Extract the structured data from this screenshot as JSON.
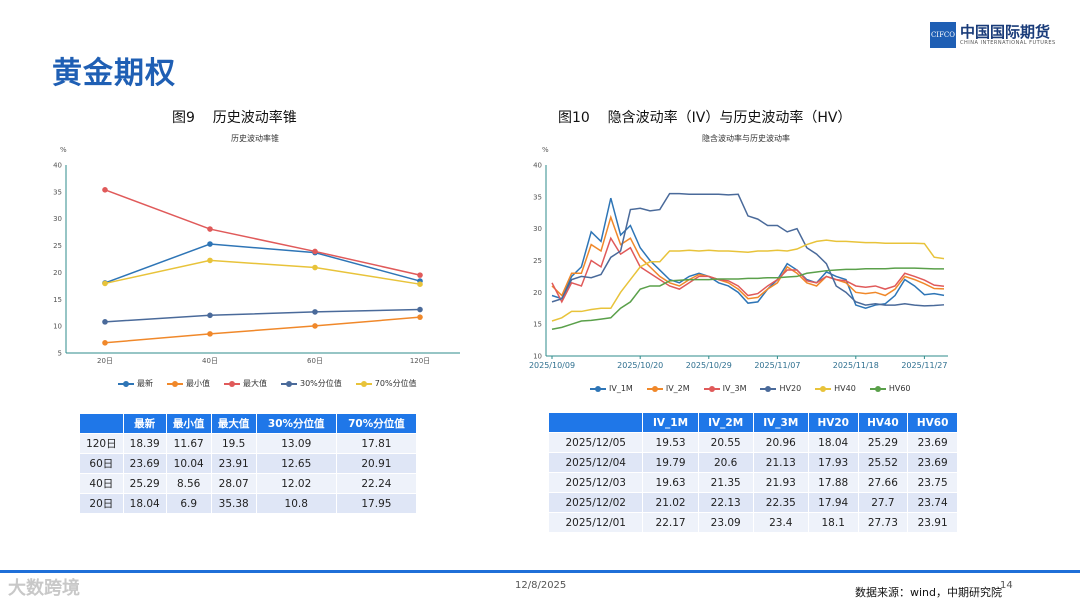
{
  "page": {
    "title": "黄金期权",
    "date": "12/8/2025",
    "source": "数据来源：wind，中期研究院",
    "page_number": "14",
    "watermark": "大数跨境"
  },
  "logo": {
    "box": "CIFCO",
    "cn": "中国国际期货",
    "en": "CHINA INTERNATIONAL FUTURES"
  },
  "fig9": {
    "caption": "图9    历史波动率锥",
    "chart_title": "历史波动率锥",
    "unit": "%"
  },
  "fig10": {
    "caption": "图10    隐含波动率（IV）与历史波动率（HV）",
    "chart_title": "隐含波动率与历史波动率",
    "unit": "%"
  },
  "chart_data": [
    {
      "type": "line",
      "title": "历史波动率锥",
      "ylabel": "%",
      "categories": [
        "20日",
        "40日",
        "60日",
        "120日"
      ],
      "ylim": [
        5,
        40
      ],
      "yticks": [
        5,
        10,
        15,
        20,
        25,
        30,
        35,
        40
      ],
      "grid": false,
      "legend": "bottom",
      "series": [
        {
          "name": "最新",
          "color": "#2e75b6",
          "values": [
            18.04,
            25.29,
            23.69,
            18.39
          ]
        },
        {
          "name": "最小值",
          "color": "#f0882a",
          "values": [
            6.9,
            8.56,
            10.04,
            11.67
          ]
        },
        {
          "name": "最大值",
          "color": "#e05a5a",
          "values": [
            35.38,
            28.07,
            23.91,
            19.5
          ]
        },
        {
          "name": "30%分位值",
          "color": "#4a6a9a",
          "values": [
            10.8,
            12.02,
            12.65,
            13.09
          ]
        },
        {
          "name": "70%分位值",
          "color": "#e8c33a",
          "values": [
            17.95,
            22.24,
            20.91,
            17.81
          ]
        }
      ]
    },
    {
      "type": "line",
      "title": "隐含波动率与历史波动率",
      "ylabel": "%",
      "xtick_labels": [
        "2025/10/09",
        "2025/10/20",
        "2025/10/29",
        "2025/11/07",
        "2025/11/18",
        "2025/11/27"
      ],
      "xtick_index": [
        0,
        9,
        16,
        23,
        31,
        38
      ],
      "ylim": [
        10,
        40
      ],
      "yticks": [
        10,
        15,
        20,
        25,
        30,
        35,
        40
      ],
      "grid": false,
      "legend": "bottom",
      "series": [
        {
          "name": "IV_1M",
          "color": "#2e75b6",
          "values": [
            19.5,
            19.0,
            22.5,
            24.0,
            29.5,
            28.0,
            34.8,
            29.0,
            30.5,
            27.0,
            25.0,
            23.5,
            22.0,
            21.5,
            22.5,
            23.0,
            22.5,
            21.5,
            21.0,
            20.0,
            18.3,
            18.5,
            20.5,
            22.0,
            24.5,
            23.5,
            22.0,
            21.5,
            23.2,
            22.5,
            22.0,
            18.0,
            17.5,
            18.0,
            18.2,
            19.5,
            22.0,
            21.0,
            19.63,
            19.79,
            19.53
          ]
        },
        {
          "name": "IV_2M",
          "color": "#f0882a",
          "values": [
            21.0,
            19.5,
            23.0,
            23.0,
            27.5,
            26.5,
            31.8,
            27.5,
            28.5,
            25.5,
            24.0,
            22.5,
            21.5,
            21.0,
            22.0,
            22.8,
            22.5,
            22.0,
            21.5,
            20.5,
            19.0,
            19.2,
            20.5,
            21.5,
            24.0,
            23.0,
            21.5,
            21.0,
            22.5,
            22.0,
            21.5,
            20.0,
            19.8,
            20.0,
            19.5,
            20.5,
            22.5,
            22.0,
            21.35,
            20.6,
            20.55
          ]
        },
        {
          "name": "IV_3M",
          "color": "#e05a5a",
          "values": [
            21.5,
            18.5,
            21.5,
            21.0,
            25.0,
            24.0,
            28.5,
            26.0,
            27.0,
            24.0,
            23.0,
            22.0,
            21.0,
            20.5,
            21.5,
            22.5,
            22.5,
            22.0,
            21.8,
            21.0,
            19.5,
            19.8,
            21.0,
            22.0,
            23.5,
            23.5,
            21.8,
            21.5,
            22.5,
            22.0,
            21.8,
            21.0,
            20.8,
            21.0,
            20.5,
            21.0,
            23.0,
            22.5,
            21.93,
            21.13,
            20.96
          ]
        },
        {
          "name": "HV20",
          "color": "#4a6a9a",
          "values": [
            18.5,
            19.0,
            22.0,
            22.5,
            22.3,
            22.8,
            25.5,
            26.5,
            33.0,
            33.2,
            32.8,
            33.0,
            35.5,
            35.5,
            35.4,
            35.4,
            35.4,
            35.4,
            35.3,
            35.4,
            32.0,
            31.5,
            30.5,
            30.5,
            29.5,
            30.0,
            27.0,
            26.0,
            24.5,
            21.0,
            20.0,
            18.5,
            18.0,
            18.2,
            18.0,
            18.0,
            18.2,
            18.0,
            17.88,
            17.93,
            18.04
          ]
        },
        {
          "name": "HV40",
          "color": "#e8c33a",
          "values": [
            15.5,
            16.0,
            17.0,
            17.0,
            17.3,
            17.5,
            17.5,
            20.0,
            22.0,
            24.0,
            24.8,
            24.8,
            26.5,
            26.5,
            26.6,
            26.5,
            26.6,
            26.5,
            26.5,
            26.4,
            26.3,
            26.5,
            26.5,
            26.6,
            26.5,
            26.8,
            27.5,
            28.0,
            28.2,
            28.0,
            28.0,
            27.9,
            27.8,
            27.8,
            27.7,
            27.7,
            27.7,
            27.7,
            27.66,
            25.52,
            25.29
          ]
        },
        {
          "name": "HV60",
          "color": "#5aa04a",
          "values": [
            14.2,
            14.5,
            15.0,
            15.5,
            15.6,
            15.8,
            16.0,
            17.5,
            18.5,
            20.5,
            21.0,
            21.0,
            21.8,
            21.9,
            22.0,
            22.0,
            22.0,
            22.1,
            22.1,
            22.1,
            22.2,
            22.2,
            22.3,
            22.3,
            22.4,
            22.5,
            23.0,
            23.2,
            23.4,
            23.5,
            23.6,
            23.6,
            23.7,
            23.7,
            23.7,
            23.8,
            23.8,
            23.8,
            23.75,
            23.69,
            23.69
          ]
        }
      ]
    }
  ],
  "table9": {
    "headers": [
      "",
      "最新",
      "最小值",
      "最大值",
      "30%分位值",
      "70%分位值"
    ],
    "rows": [
      [
        "120日",
        "18.39",
        "11.67",
        "19.5",
        "13.09",
        "17.81"
      ],
      [
        "60日",
        "23.69",
        "10.04",
        "23.91",
        "12.65",
        "20.91"
      ],
      [
        "40日",
        "25.29",
        "8.56",
        "28.07",
        "12.02",
        "22.24"
      ],
      [
        "20日",
        "18.04",
        "6.9",
        "35.38",
        "10.8",
        "17.95"
      ]
    ]
  },
  "table10": {
    "headers": [
      "",
      "IV_1M",
      "IV_2M",
      "IV_3M",
      "HV20",
      "HV40",
      "HV60"
    ],
    "rows": [
      [
        "2025/12/05",
        "19.53",
        "20.55",
        "20.96",
        "18.04",
        "25.29",
        "23.69"
      ],
      [
        "2025/12/04",
        "19.79",
        "20.6",
        "21.13",
        "17.93",
        "25.52",
        "23.69"
      ],
      [
        "2025/12/03",
        "19.63",
        "21.35",
        "21.93",
        "17.88",
        "27.66",
        "23.75"
      ],
      [
        "2025/12/02",
        "21.02",
        "22.13",
        "22.35",
        "17.94",
        "27.7",
        "23.74"
      ],
      [
        "2025/12/01",
        "22.17",
        "23.09",
        "23.4",
        "18.1",
        "27.73",
        "23.91"
      ]
    ]
  }
}
